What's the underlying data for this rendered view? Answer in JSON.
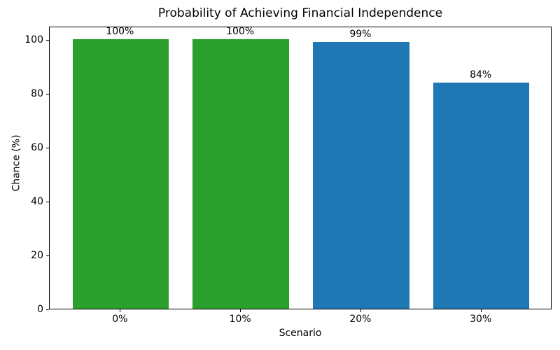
{
  "chart_data": {
    "type": "bar",
    "title": "Probability of Achieving Financial Independence",
    "xlabel": "Scenario",
    "ylabel": "Chance (%)",
    "categories": [
      "0%",
      "10%",
      "20%",
      "30%"
    ],
    "values": [
      100,
      100,
      99,
      84
    ],
    "bar_labels": [
      "100%",
      "100%",
      "99%",
      "84%"
    ],
    "bar_colors": [
      "#2ca02c",
      "#2ca02c",
      "#1f77b4",
      "#1f77b4"
    ],
    "yticks": [
      0,
      20,
      40,
      60,
      80,
      100
    ],
    "ytick_labels": [
      "0",
      "20",
      "40",
      "60",
      "80",
      "100"
    ],
    "ylim": [
      0,
      105
    ],
    "grid": false,
    "legend": "none",
    "colors": {
      "green_bar": "#2ca02c",
      "blue_bar": "#1f77b4",
      "background": "#ffffff",
      "spine": "#000000",
      "text": "#000000"
    }
  }
}
